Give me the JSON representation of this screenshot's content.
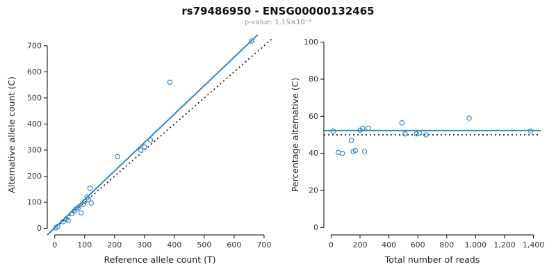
{
  "title": "rs79486950 - ENSG00000132465",
  "subtitle": {
    "label": "p-value: ",
    "value": "1.15×10⁻³"
  },
  "colors": {
    "fit_line": "#2e86d1",
    "points": "#3a87c8",
    "identity_line": "#000000",
    "axis": "#000000",
    "tick_text": "#333333"
  },
  "chart_data": [
    {
      "type": "scatter",
      "xlabel": "Reference allele count (T)",
      "ylabel": "Alternative allele count (C)",
      "xlim": [
        0,
        700
      ],
      "ylim": [
        0,
        700
      ],
      "x_range": [
        -25,
        728
      ],
      "y_range": [
        -25,
        742
      ],
      "xticks": [
        0,
        100,
        200,
        300,
        400,
        500,
        600,
        700
      ],
      "xtick_labels": [
        "0",
        "100",
        "200",
        "300",
        "400",
        "500",
        "600",
        "700"
      ],
      "yticks": [
        0,
        100,
        200,
        300,
        400,
        500,
        600,
        700
      ],
      "ytick_labels": [
        "0",
        "100",
        "200",
        "300",
        "400",
        "500",
        "600",
        "700"
      ],
      "grid": false,
      "legend": "none",
      "points": [
        [
          3,
          2
        ],
        [
          10,
          7
        ],
        [
          28,
          26
        ],
        [
          38,
          35
        ],
        [
          45,
          30
        ],
        [
          58,
          57
        ],
        [
          65,
          66
        ],
        [
          72,
          74
        ],
        [
          80,
          81
        ],
        [
          88,
          60
        ],
        [
          95,
          92
        ],
        [
          100,
          103
        ],
        [
          108,
          120
        ],
        [
          113,
          112
        ],
        [
          118,
          154
        ],
        [
          122,
          97
        ],
        [
          210,
          275
        ],
        [
          288,
          300
        ],
        [
          300,
          312
        ],
        [
          320,
          338
        ],
        [
          385,
          560
        ],
        [
          658,
          718
        ]
      ],
      "lines": [
        {
          "name": "identity-line",
          "intercept": 0,
          "slope": 1,
          "dashed": true
        },
        {
          "name": "fit-line",
          "intercept": 2,
          "slope": 1.09,
          "dashed": false
        }
      ]
    },
    {
      "type": "scatter",
      "xlabel": "Total number of reads",
      "ylabel": "Percentage alternative (C)",
      "xlim": [
        0,
        1400
      ],
      "ylim": [
        0,
        100
      ],
      "x_range": [
        -50,
        1450
      ],
      "y_range": [
        -4,
        104
      ],
      "xticks": [
        0,
        200,
        400,
        600,
        800,
        1000,
        1200,
        1400
      ],
      "xtick_labels": [
        "0",
        "200",
        "400",
        "600",
        "800",
        "1,000",
        "1,200",
        "1,400"
      ],
      "yticks": [
        0,
        20,
        40,
        60,
        80,
        100
      ],
      "ytick_labels": [
        "0",
        "20",
        "40",
        "60",
        "80",
        "100"
      ],
      "grid": false,
      "legend": "none",
      "points": [
        [
          15,
          52
        ],
        [
          50,
          40.5
        ],
        [
          78,
          40
        ],
        [
          140,
          47
        ],
        [
          152,
          41
        ],
        [
          168,
          41.5
        ],
        [
          200,
          52.5
        ],
        [
          218,
          53.5
        ],
        [
          232,
          41
        ],
        [
          258,
          53.5
        ],
        [
          490,
          56.5
        ],
        [
          512,
          50.5
        ],
        [
          590,
          50.5
        ],
        [
          612,
          51
        ],
        [
          655,
          50
        ],
        [
          955,
          59
        ],
        [
          1380,
          52
        ]
      ],
      "lines": [
        {
          "name": "identity-line",
          "intercept": 50,
          "slope": 0,
          "dashed": true
        },
        {
          "name": "fit-line",
          "intercept": 52.3,
          "slope": 0,
          "dashed": false
        }
      ]
    }
  ]
}
